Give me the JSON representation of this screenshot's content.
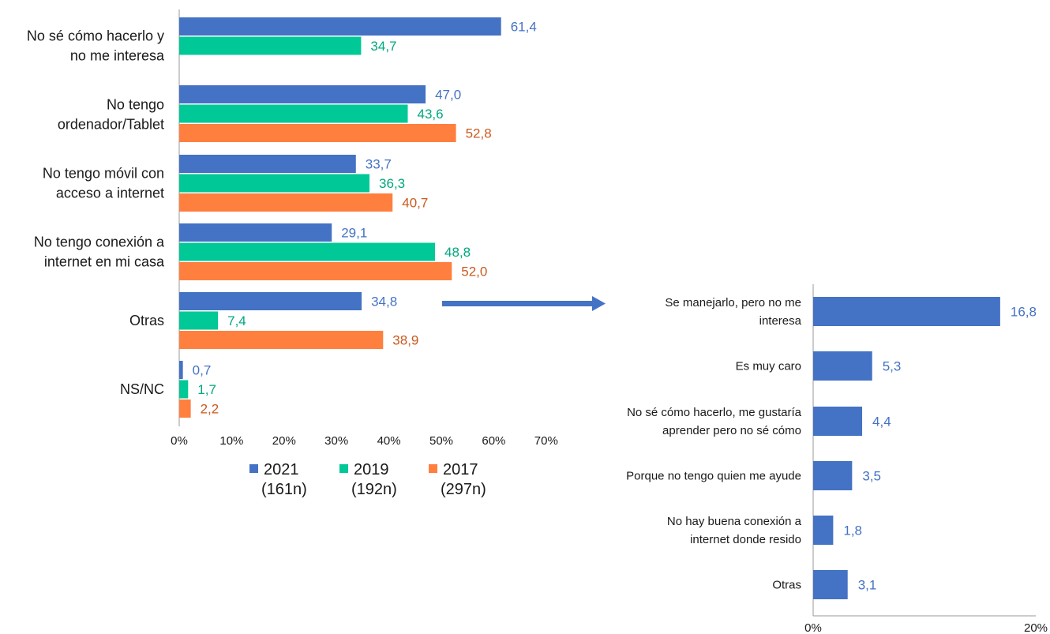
{
  "colors": {
    "2021": "#4472C4",
    "2019": "#00C896",
    "2017": "#FF7F3F",
    "label_2021": "#4472C4",
    "label_2019": "#00A77E",
    "label_2017": "#C95A1F",
    "axis": "#9a9a9a",
    "arrow": "#4472C4"
  },
  "chart_data": [
    {
      "type": "bar",
      "orientation": "horizontal",
      "categories": [
        [
          "No sé cómo hacerlo y",
          "no me interesa"
        ],
        [
          "No tengo",
          "ordenador/Tablet"
        ],
        [
          "No tengo móvil con",
          "acceso a internet"
        ],
        [
          "No tengo conexión a",
          "internet en mi casa"
        ],
        [
          "Otras"
        ],
        [
          "NS/NC"
        ]
      ],
      "series": [
        {
          "key": "2021",
          "name": "2021",
          "sub": "(161n)",
          "values": [
            61.4,
            47.0,
            33.7,
            29.1,
            34.8,
            0.7
          ],
          "labels": [
            "61,4",
            "47,0",
            "33,7",
            "29,1",
            "34,8",
            "0,7"
          ]
        },
        {
          "key": "2019",
          "name": "2019",
          "sub": "(192n)",
          "values": [
            34.7,
            43.6,
            36.3,
            48.8,
            7.4,
            1.7
          ],
          "labels": [
            "34,7",
            "43,6",
            "36,3",
            "48,8",
            "7,4",
            "1,7"
          ]
        },
        {
          "key": "2017",
          "name": "2017",
          "sub": "(297n)",
          "values": [
            null,
            52.8,
            40.7,
            52.0,
            38.9,
            2.2
          ],
          "labels": [
            null,
            "52,8",
            "40,7",
            "52,0",
            "38,9",
            "2,2"
          ]
        }
      ],
      "xlim": [
        0,
        70
      ],
      "xticks": [
        0,
        10,
        20,
        30,
        40,
        50,
        60,
        70
      ],
      "xtick_labels": [
        "0%",
        "10%",
        "20%",
        "30%",
        "40%",
        "50%",
        "60%",
        "70%"
      ],
      "legend": "bottom"
    },
    {
      "type": "bar",
      "orientation": "horizontal",
      "categories": [
        [
          "Se manejarlo, pero no me",
          "interesa"
        ],
        [
          "Es muy caro"
        ],
        [
          "No sé cómo hacerlo, me gustaría",
          "aprender pero no sé cómo"
        ],
        [
          "Porque no tengo quien me ayude"
        ],
        [
          "No hay buena conexión a",
          "internet donde resido"
        ],
        [
          "Otras"
        ]
      ],
      "values": [
        16.8,
        5.3,
        4.4,
        3.5,
        1.8,
        3.1
      ],
      "labels": [
        "16,8",
        "5,3",
        "4,4",
        "3,5",
        "1,8",
        "3,1"
      ],
      "xlim": [
        0,
        20
      ],
      "xticks": [
        0,
        20
      ],
      "xtick_labels": [
        "0%",
        "20%"
      ]
    }
  ]
}
